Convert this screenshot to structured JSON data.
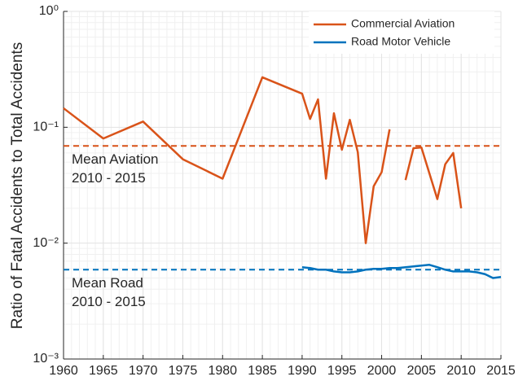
{
  "chart_data": {
    "type": "line",
    "ylabel": "Ratio of Fatal Accidents to Total Accidents",
    "xlim": [
      1960,
      2015
    ],
    "xticks": [
      1960,
      1965,
      1970,
      1975,
      1980,
      1985,
      1990,
      1995,
      2000,
      2005,
      2010,
      2015
    ],
    "ylim": [
      0.001,
      1
    ],
    "yticks": [
      {
        "value": 0.001,
        "label": "10⁻³"
      },
      {
        "value": 0.01,
        "label": "10⁻²"
      },
      {
        "value": 0.1,
        "label": "10⁻¹"
      },
      {
        "value": 1,
        "label": "10⁰"
      }
    ],
    "log_y": true,
    "grid": true,
    "legend": "top-right",
    "series": [
      {
        "name": "Commercial Aviation",
        "color": "#d95319",
        "x": [
          1960,
          1965,
          1970,
          1975,
          1980,
          1985,
          1990,
          1991,
          1992,
          1993,
          1994,
          1995,
          1996,
          1997,
          1998,
          1999,
          2000,
          2001,
          2002,
          2003,
          2004,
          2005,
          2007,
          2008,
          2009,
          2010
        ],
        "values": [
          0.146,
          0.08,
          0.112,
          0.053,
          0.036,
          0.27,
          0.195,
          0.118,
          0.174,
          0.036,
          0.132,
          0.064,
          0.116,
          0.061,
          0.01,
          0.031,
          0.041,
          0.096,
          null,
          0.035,
          0.066,
          0.067,
          0.024,
          0.048,
          0.06,
          0.02
        ]
      },
      {
        "name": "Road Motor Vehicle",
        "color": "#0072bd",
        "x": [
          1990,
          1991,
          1992,
          1993,
          1994,
          1995,
          1996,
          1997,
          1998,
          1999,
          2000,
          2001,
          2002,
          2003,
          2004,
          2005,
          2006,
          2007,
          2008,
          2009,
          2010,
          2011,
          2012,
          2013,
          2014,
          2015
        ],
        "values": [
          0.0062,
          0.0061,
          0.0059,
          0.0059,
          0.0057,
          0.0056,
          0.0056,
          0.0057,
          0.0059,
          0.006,
          0.006,
          0.0061,
          0.0061,
          0.0062,
          0.0063,
          0.0064,
          0.0065,
          0.0062,
          0.0059,
          0.0057,
          0.0057,
          0.0057,
          0.0056,
          0.0054,
          0.005,
          0.0051
        ]
      }
    ],
    "reference_lines": [
      {
        "value": 0.069,
        "color": "#d95319",
        "label": [
          "Mean Aviation",
          "2010 - 2015"
        ]
      },
      {
        "value": 0.0059,
        "color": "#0072bd",
        "label": [
          "Mean Road",
          "2010 - 2015"
        ]
      }
    ]
  }
}
